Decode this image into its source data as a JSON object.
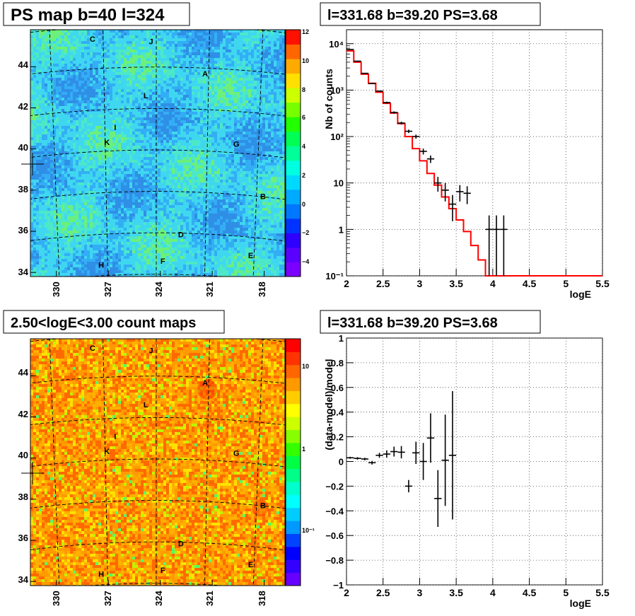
{
  "panels": {
    "tl": {
      "title": "PS map b=40 l=324",
      "y_ticks": [
        "44",
        "42",
        "40",
        "38",
        "36",
        "34"
      ],
      "x_ticks": [
        "330",
        "327",
        "324",
        "321",
        "318"
      ],
      "colorbar_ticks": [
        "12",
        "10",
        "8",
        "6",
        "4",
        "2",
        "0",
        "−2",
        "−4"
      ],
      "colorbar_range": [
        -5,
        12
      ]
    },
    "bl": {
      "title": "2.50<logE<3.00 count maps",
      "y_ticks": [
        "44",
        "42",
        "40",
        "38",
        "36",
        "34"
      ],
      "x_ticks": [
        "330",
        "327",
        "324",
        "321",
        "318"
      ],
      "colorbar_ticks": [
        "10",
        "1",
        "10⁻¹"
      ]
    },
    "tr": {
      "title": "l=331.68 b=39.20 PS=3.68"
    },
    "br": {
      "title": "l=331.68 b=39.20 PS=3.68"
    }
  },
  "source_markers": [
    {
      "label": "A",
      "l": 321.2,
      "b": 43.6
    },
    {
      "label": "B",
      "l": 317.6,
      "b": 37.9
    },
    {
      "label": "C",
      "l": 327.6,
      "b": 45.3
    },
    {
      "label": "D",
      "l": 322.5,
      "b": 35.8
    },
    {
      "label": "E",
      "l": 318.2,
      "b": 35.0
    },
    {
      "label": "F",
      "l": 323.6,
      "b": 34.5
    },
    {
      "label": "G",
      "l": 319.3,
      "b": 40.3
    },
    {
      "label": "H",
      "l": 327.4,
      "b": 34.4
    },
    {
      "label": "I",
      "l": 326.4,
      "b": 41.0
    },
    {
      "label": "J",
      "l": 324.3,
      "b": 45.1
    },
    {
      "label": "K",
      "l": 326.9,
      "b": 40.3
    },
    {
      "label": "L",
      "l": 324.6,
      "b": 42.5
    }
  ],
  "colors": {
    "model_line": "#ff0000",
    "data_points": "#000000",
    "grid": "#555555"
  },
  "chart_data": [
    {
      "type": "heatmap",
      "title": "PS map b=40 l=324",
      "xlabel": "",
      "ylabel": "",
      "x_ticks": [
        330,
        327,
        324,
        321,
        318
      ],
      "y_ticks": [
        44,
        42,
        40,
        38,
        36,
        34
      ],
      "xlim": [
        331.5,
        316.8
      ],
      "ylim": [
        33.8,
        45.8
      ],
      "z_range": [
        -5,
        12
      ],
      "palette": "rainbow",
      "grid": true,
      "markers": [
        "A",
        "B",
        "C",
        "D",
        "E",
        "F",
        "G",
        "H",
        "I",
        "J",
        "K",
        "L"
      ]
    },
    {
      "type": "scatter",
      "title": "l=331.68 b=39.20 PS=3.68",
      "xlabel": "logE",
      "ylabel": "Nb of counts",
      "xlim": [
        2,
        5.5
      ],
      "ylim": [
        0.1,
        20000
      ],
      "yscale": "log",
      "x_ticks": [
        "2",
        "2.5",
        "3",
        "3.5",
        "4",
        "4.5",
        "5",
        "5.5"
      ],
      "y_ticks": [
        "10⁻¹",
        "1",
        "10",
        "10²",
        "10³",
        "10⁴"
      ],
      "grid": true,
      "model": {
        "edges": [
          2.0,
          2.1,
          2.2,
          2.3,
          2.4,
          2.5,
          2.6,
          2.7,
          2.8,
          2.9,
          3.0,
          3.1,
          3.2,
          3.3,
          3.4,
          3.5,
          3.6,
          3.7,
          3.8,
          3.9,
          4.0,
          4.1,
          5.5
        ],
        "values": [
          7000,
          4000,
          2200,
          1400,
          900,
          520,
          320,
          190,
          100,
          55,
          30,
          16,
          9,
          5,
          2.8,
          1.6,
          0.9,
          0.45,
          0.22,
          0.09,
          0.05,
          0.1
        ]
      },
      "data": {
        "x": [
          2.05,
          2.15,
          2.25,
          2.35,
          2.45,
          2.55,
          2.65,
          2.75,
          2.85,
          2.95,
          3.05,
          3.15,
          3.25,
          3.35,
          3.45,
          3.55,
          3.65,
          3.95,
          4.05,
          4.15
        ],
        "y": [
          7500,
          4200,
          2300,
          1380,
          950,
          540,
          330,
          195,
          130,
          100,
          48,
          33,
          10,
          7,
          3.5,
          6.5,
          6,
          1,
          1,
          1
        ],
        "yerr_lo": [
          90,
          65,
          48,
          37,
          31,
          23,
          18,
          14,
          11,
          10,
          7,
          6,
          3.5,
          3,
          2,
          2.5,
          2.5,
          0.9,
          0.9,
          0.9
        ],
        "yerr_hi": [
          90,
          65,
          48,
          37,
          31,
          23,
          18,
          14,
          11,
          10,
          7,
          6,
          3.5,
          3,
          2,
          2.5,
          2.5,
          1,
          1,
          1
        ]
      }
    },
    {
      "type": "heatmap",
      "title": "2.50<logE<3.00 count maps",
      "xlabel": "",
      "ylabel": "",
      "x_ticks": [
        330,
        327,
        324,
        321,
        318
      ],
      "y_ticks": [
        44,
        42,
        40,
        38,
        36,
        34
      ],
      "xlim": [
        331.5,
        316.8
      ],
      "ylim": [
        33.8,
        45.8
      ],
      "zscale": "log",
      "palette": "rainbow",
      "grid": true,
      "markers": [
        "A",
        "B",
        "C",
        "D",
        "E",
        "F",
        "G",
        "H",
        "I",
        "J",
        "K",
        "L"
      ]
    },
    {
      "type": "scatter",
      "title": "l=331.68 b=39.20 PS=3.68",
      "xlabel": "logE",
      "ylabel": "(data-model)/model",
      "xlim": [
        2,
        5.5
      ],
      "ylim": [
        -1,
        1
      ],
      "x_ticks": [
        "2",
        "2.5",
        "3",
        "3.5",
        "4",
        "4.5",
        "5",
        "5.5"
      ],
      "y_ticks": [
        "1",
        "0.8",
        "0.6",
        "0.4",
        "0.2",
        "0",
        "−0.2",
        "−0.4",
        "−0.6",
        "−0.8",
        "−1"
      ],
      "grid": true,
      "data": {
        "x": [
          2.05,
          2.15,
          2.25,
          2.35,
          2.45,
          2.55,
          2.65,
          2.75,
          2.85,
          2.95,
          3.05,
          3.15,
          3.25,
          3.35,
          3.45
        ],
        "y": [
          0.03,
          0.025,
          0.02,
          -0.01,
          0.05,
          0.06,
          0.08,
          0.075,
          -0.2,
          0.07,
          0.0,
          0.19,
          -0.3,
          0.01,
          0.05
        ],
        "err": [
          0.008,
          0.01,
          0.01,
          0.015,
          0.02,
          0.03,
          0.04,
          0.05,
          0.05,
          0.09,
          0.15,
          0.2,
          0.23,
          0.37,
          0.52
        ]
      }
    }
  ]
}
